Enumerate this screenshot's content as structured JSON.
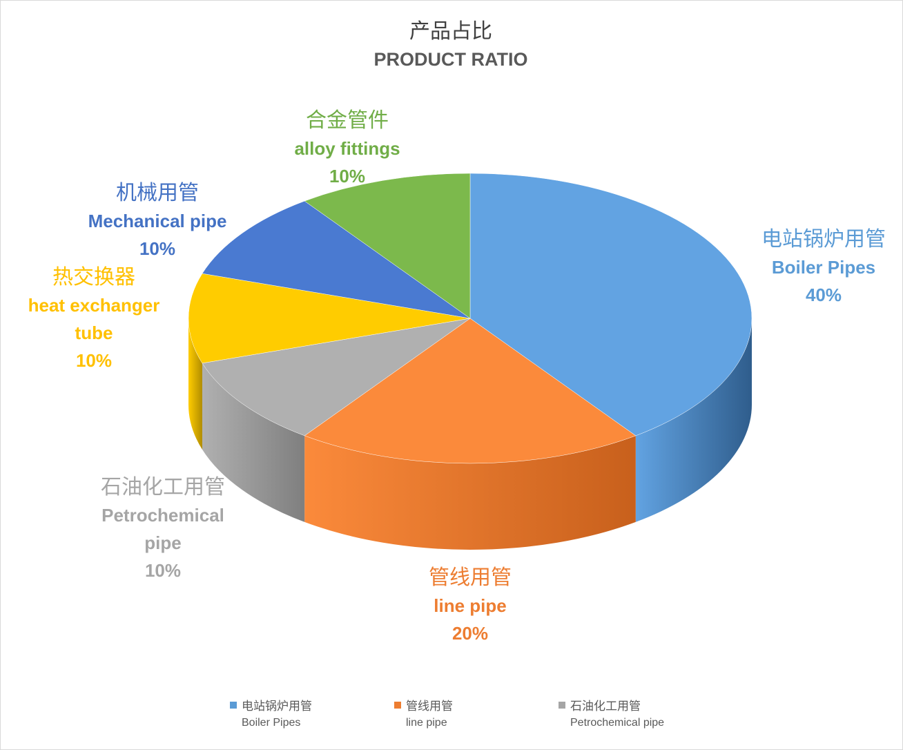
{
  "chart_data": {
    "type": "pie",
    "title": "产品占比",
    "subtitle": "PRODUCT RATIO",
    "slices": [
      {
        "name_cn": "电站锅炉用管",
        "name_en": "Boiler Pipes",
        "value": 40,
        "label": "40%",
        "color": "#62a3e2",
        "side_color": "#2f5d8c"
      },
      {
        "name_cn": "管线用管",
        "name_en": "line pipe",
        "value": 20,
        "label": "20%",
        "color": "#fb8a3b",
        "side_color": "#c8601c"
      },
      {
        "name_cn": "石油化工用管",
        "name_en": "Petrochemical pipe",
        "value": 10,
        "label": "10%",
        "color": "#b0b0b0",
        "side_color": "#7f7f7f"
      },
      {
        "name_cn": "热交换器",
        "name_en": "heat exchanger tube",
        "value": 10,
        "label": "10%",
        "color": "#ffcc00",
        "side_color": "#b08c00"
      },
      {
        "name_cn": "机械用管",
        "name_en": "Mechanical pipe",
        "value": 10,
        "label": "10%",
        "color": "#4a7ad1",
        "side_color": "#2e4e8a"
      },
      {
        "name_cn": "合金管件",
        "name_en": "alloy fittings",
        "value": 10,
        "label": "10%",
        "color": "#7cb94c",
        "side_color": "#4f7d2c"
      }
    ],
    "label_colors": [
      "#5b9bd5",
      "#ed7d31",
      "#a5a5a5",
      "#ffc000",
      "#4472c4",
      "#70ad47"
    ],
    "label_lines": [
      [
        "电站锅炉用管",
        "Boiler Pipes",
        "40%"
      ],
      [
        "管线用管",
        "line pipe",
        "20%"
      ],
      [
        "石油化工用管",
        "Petrochemical",
        "pipe",
        "10%"
      ],
      [
        "热交换器",
        "heat exchanger",
        "tube",
        "10%"
      ],
      [
        "机械用管",
        "Mechanical pipe",
        "10%"
      ],
      [
        "合金管件",
        "alloy fittings",
        "10%"
      ]
    ],
    "legend": [
      {
        "name_cn": "电站锅炉用管",
        "name_en": "Boiler Pipes",
        "color": "#5b9bd5"
      },
      {
        "name_cn": "管线用管",
        "name_en": "line pipe",
        "color": "#ed7d31"
      },
      {
        "name_cn": "石油化工用管",
        "name_en": "Petrochemical pipe",
        "color": "#a5a5a5"
      }
    ],
    "legend_position": "bottom"
  }
}
